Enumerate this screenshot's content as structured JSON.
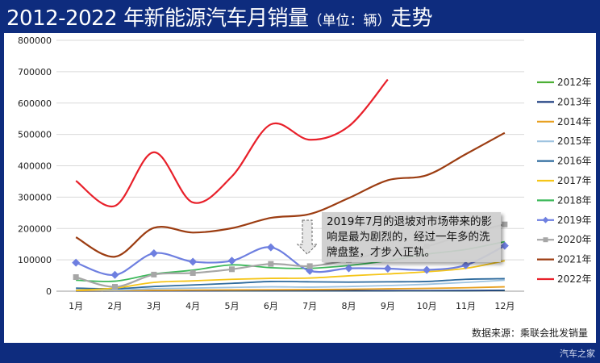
{
  "title": {
    "main": "2012-2022 年新能源汽车月销量",
    "unit": "（单位：辆）",
    "tail": "走势"
  },
  "source": "数据来源：乘联会批发销量",
  "watermark": "汽车之家",
  "annotation": "2019年7月的退坡对市场带来的影响是最为剧烈的，经过一年多的洗牌盘整，才步入正轨。",
  "chart_data": {
    "type": "line",
    "title": "2012-2022 年新能源汽车月销量（单位：辆）走势",
    "categories": [
      "1月",
      "2月",
      "3月",
      "4月",
      "5月",
      "6月",
      "7月",
      "8月",
      "9月",
      "10月",
      "11月",
      "12月"
    ],
    "ylim": [
      0,
      800000
    ],
    "yticks": [
      "0",
      "100000",
      "200000",
      "300000",
      "400000",
      "500000",
      "600000",
      "700000",
      "800000"
    ],
    "grid": true,
    "legend_position": "right",
    "series": [
      {
        "name": "2012年",
        "color": "#4caf35",
        "marker": "none",
        "values": [
          1000,
          1000,
          1200,
          1200,
          1400,
          1500,
          1300,
          1400,
          1500,
          1600,
          1800,
          2500
        ]
      },
      {
        "name": "2013年",
        "color": "#1f3f80",
        "marker": "none",
        "values": [
          800,
          900,
          1000,
          1100,
          1200,
          1300,
          1200,
          1400,
          1500,
          1600,
          1800,
          2800
        ]
      },
      {
        "name": "2014年",
        "color": "#e8a020",
        "marker": "none",
        "values": [
          2000,
          2200,
          2800,
          3500,
          4000,
          4500,
          5000,
          6000,
          7500,
          9000,
          11000,
          14000
        ]
      },
      {
        "name": "2015年",
        "color": "#9ec3e0",
        "marker": "none",
        "values": [
          5000,
          4000,
          8000,
          10000,
          12000,
          14000,
          13000,
          15000,
          18000,
          22000,
          28000,
          35000
        ]
      },
      {
        "name": "2016年",
        "color": "#2e6b9e",
        "marker": "none",
        "values": [
          10000,
          8000,
          15000,
          20000,
          25000,
          31000,
          30000,
          29000,
          30000,
          31000,
          38000,
          40000
        ]
      },
      {
        "name": "2017年",
        "color": "#f5c518",
        "marker": "none",
        "values": [
          3000,
          10000,
          28000,
          33000,
          38000,
          41000,
          42000,
          49000,
          55000,
          62000,
          73000,
          97000
        ]
      },
      {
        "name": "2018年",
        "color": "#3cb85a",
        "marker": "none",
        "values": [
          35000,
          32000,
          55000,
          67000,
          84000,
          75000,
          73000,
          82000,
          97000,
          118000,
          133000,
          158000
        ]
      },
      {
        "name": "2019年",
        "color": "#6e7fe0",
        "marker": "diamond",
        "values": [
          91000,
          52000,
          121000,
          94000,
          97000,
          140000,
          65000,
          73000,
          72000,
          68000,
          83000,
          145000
        ]
      },
      {
        "name": "2020年",
        "color": "#a6a6a6",
        "marker": "square",
        "values": [
          45000,
          14000,
          53000,
          58000,
          70000,
          87000,
          80000,
          100000,
          127000,
          143000,
          183000,
          213000
        ]
      },
      {
        "name": "2021年",
        "color": "#9c3d12",
        "marker": "none",
        "values": [
          172000,
          110000,
          202000,
          187000,
          201000,
          234000,
          246000,
          297000,
          354000,
          370000,
          437000,
          505000
        ]
      },
      {
        "name": "2022年",
        "color": "#e8202a",
        "marker": "none",
        "values": [
          352000,
          272000,
          443000,
          283000,
          366000,
          532000,
          483000,
          526000,
          675000,
          null,
          null,
          null
        ]
      }
    ]
  }
}
